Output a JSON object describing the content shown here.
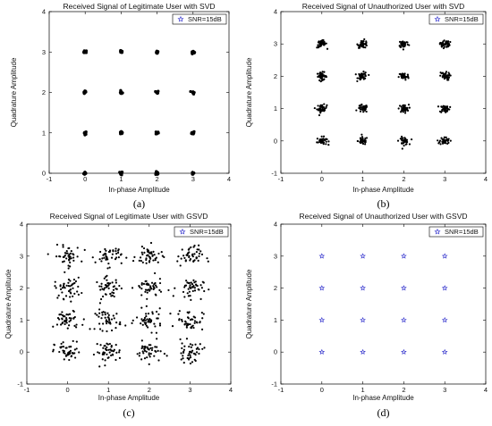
{
  "chart_data": [
    {
      "type": "scatter",
      "title": "Received Signal of Legitimate User with SVD",
      "xlabel": "In-phase Amplitude",
      "ylabel": "Quadrature Amplitude",
      "xlim": [
        -1,
        4
      ],
      "ylim": [
        0,
        4
      ],
      "xticks": [
        "-1",
        "0",
        "1",
        "2",
        "3",
        "4"
      ],
      "yticks": [
        "0",
        "1",
        "2",
        "3",
        "4"
      ],
      "legend": {
        "label": "SNR=15dB",
        "placement": "top-right"
      },
      "caption": "(a)",
      "constellation": [
        0,
        1,
        2,
        3
      ],
      "spread": 0.02,
      "points_per_symbol": 12,
      "marker": "dot",
      "color": "#000000"
    },
    {
      "type": "scatter",
      "title": "Received Signal of Unauthorized User with SVD",
      "xlabel": "In-phase Amplitude",
      "ylabel": "Quadrature Amplitude",
      "xlim": [
        -1,
        4
      ],
      "ylim": [
        -1,
        4
      ],
      "xticks": [
        "-1",
        "0",
        "1",
        "2",
        "3",
        "4"
      ],
      "yticks": [
        "-1",
        "0",
        "1",
        "2",
        "3",
        "4"
      ],
      "legend": {
        "label": "SNR=15dB",
        "placement": "top-right"
      },
      "caption": "(b)",
      "constellation": [
        0,
        1,
        2,
        3
      ],
      "spread": 0.06,
      "points_per_symbol": 40,
      "marker": "dot",
      "color": "#000000"
    },
    {
      "type": "scatter",
      "title": "Received Signal of Legitimate User with GSVD",
      "xlabel": "In-phase Amplitude",
      "ylabel": "Quadrature Amplitude",
      "xlim": [
        -1,
        4
      ],
      "ylim": [
        -1,
        4
      ],
      "xticks": [
        "-1",
        "0",
        "1",
        "2",
        "3",
        "4"
      ],
      "yticks": [
        "-1",
        "0",
        "1",
        "2",
        "3",
        "4"
      ],
      "legend": {
        "label": "SNR=15dB",
        "placement": "top-right"
      },
      "caption": "(c)",
      "constellation": [
        0,
        1,
        2,
        3
      ],
      "spread": 0.16,
      "points_per_symbol": 45,
      "marker": "dot",
      "color": "#000000"
    },
    {
      "type": "scatter",
      "title": "Received Signal of Unauthorized User with GSVD",
      "xlabel": "In-phase Amplitude",
      "ylabel": "Quadrature Amplitude",
      "xlim": [
        -1,
        4
      ],
      "ylim": [
        -1,
        4
      ],
      "xticks": [
        "-1",
        "0",
        "1",
        "2",
        "3",
        "4"
      ],
      "yticks": [
        "-1",
        "0",
        "1",
        "2",
        "3",
        "4"
      ],
      "legend": {
        "label": "SNR=15dB",
        "placement": "top-right"
      },
      "caption": "(d)",
      "constellation": [
        0,
        1,
        2,
        3
      ],
      "spread": 0,
      "points_per_symbol": 1,
      "marker": "star",
      "color": "#3a3acf"
    }
  ],
  "colors": {
    "axis": "#000000",
    "legend_marker": "#3a3acf"
  }
}
